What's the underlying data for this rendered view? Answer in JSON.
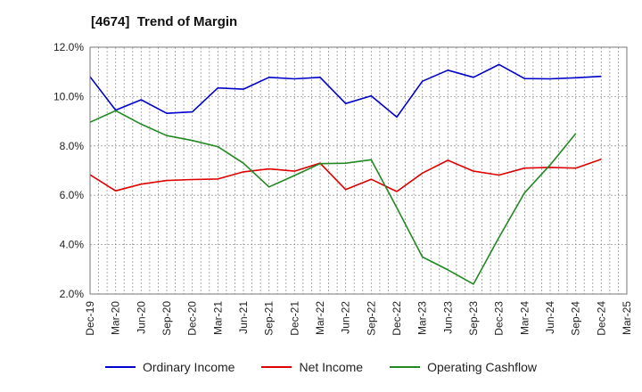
{
  "title": "[4674]  Trend of Margin",
  "chart_data": {
    "type": "line",
    "title": "[4674]  Trend of Margin",
    "xlabel": "",
    "ylabel": "",
    "x": [
      "Dec-19",
      "Mar-20",
      "Jun-20",
      "Sep-20",
      "Dec-20",
      "Mar-21",
      "Jun-21",
      "Sep-21",
      "Dec-21",
      "Mar-22",
      "Jun-22",
      "Sep-22",
      "Dec-22",
      "Mar-23",
      "Jun-23",
      "Sep-23",
      "Dec-23",
      "Mar-24",
      "Jun-24",
      "Sep-24",
      "Dec-24",
      "Mar-25"
    ],
    "ylim": [
      2.0,
      12.0
    ],
    "yticks": [
      2.0,
      4.0,
      6.0,
      8.0,
      10.0,
      12.0
    ],
    "ytick_labels": [
      "2.0%",
      "4.0%",
      "6.0%",
      "8.0%",
      "10.0%",
      "12.0%"
    ],
    "grid": true,
    "legend_position": "bottom",
    "series": [
      {
        "name": "Ordinary Income",
        "color": "#0000cc",
        "values": [
          10.8,
          9.45,
          9.87,
          9.32,
          9.38,
          10.35,
          10.3,
          10.78,
          10.72,
          10.78,
          9.72,
          10.03,
          9.17,
          10.62,
          11.07,
          10.78,
          11.3,
          10.73,
          10.72,
          10.76,
          10.82,
          null
        ]
      },
      {
        "name": "Net Income",
        "color": "#dd0000",
        "values": [
          6.83,
          6.18,
          6.45,
          6.6,
          6.64,
          6.66,
          6.95,
          7.07,
          6.98,
          7.3,
          6.23,
          6.65,
          6.15,
          6.9,
          7.42,
          6.98,
          6.82,
          7.1,
          7.13,
          7.1,
          7.46,
          null
        ]
      },
      {
        "name": "Operating Cashflow",
        "color": "#228822",
        "values": [
          8.96,
          9.43,
          8.88,
          8.42,
          8.22,
          7.97,
          7.3,
          6.34,
          6.8,
          7.28,
          7.3,
          7.44,
          5.5,
          3.5,
          2.98,
          2.4,
          4.3,
          6.1,
          7.23,
          8.5,
          null,
          null
        ]
      }
    ]
  }
}
